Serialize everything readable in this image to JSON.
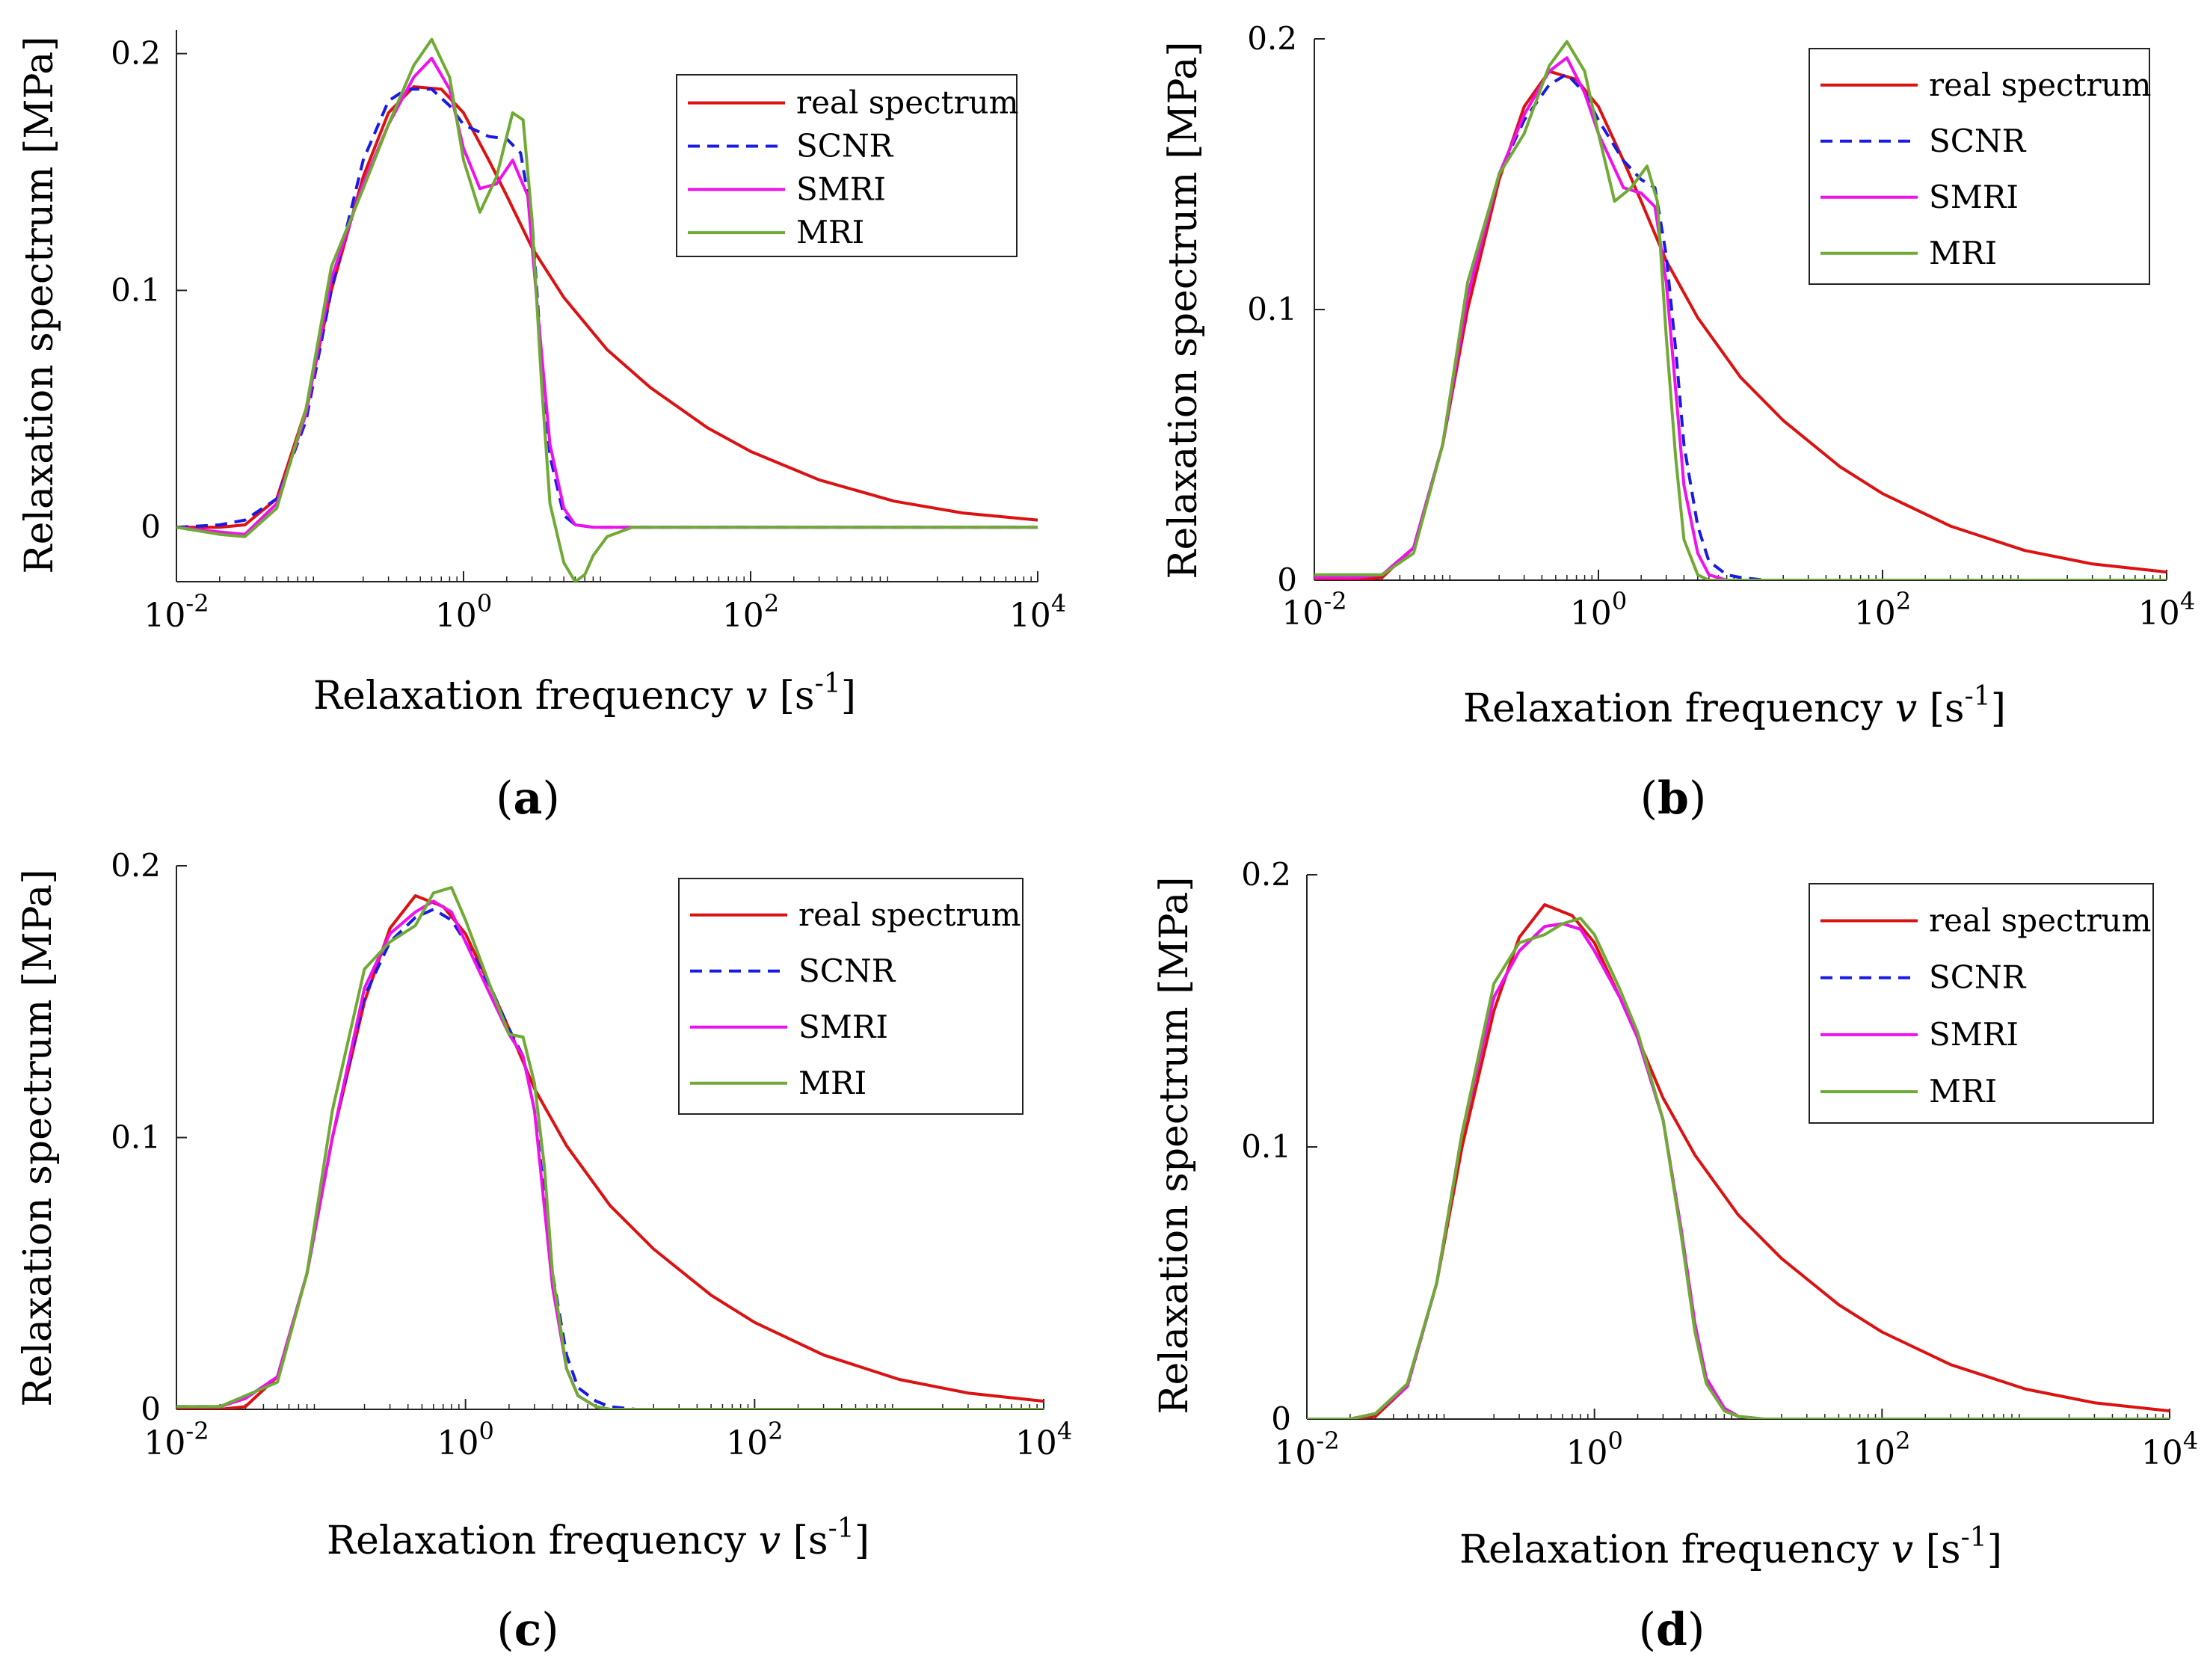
{
  "figure": {
    "legend_entries": [
      "real spectrum",
      "SCNR",
      "SMRI",
      "MRI"
    ],
    "series_colors": {
      "real spectrum": "#dd1111",
      "SCNR": "#1a1ae6",
      "SMRI": "#ee11ee",
      "MRI": "#6faa35"
    }
  },
  "chart_data": [
    {
      "panel_label": "(a)",
      "type": "line",
      "xlabel": "Relaxation frequency v  [s⁻¹]",
      "ylabel": "Relaxation spectrum  [MPa]",
      "xscale": "log",
      "xlim": [
        0.01,
        10000
      ],
      "ylim": [
        -0.023,
        0.21
      ],
      "xticks": [
        0.01,
        1,
        100,
        10000
      ],
      "xtick_labels": [
        "10-2",
        "100",
        "102",
        "104"
      ],
      "yticks": [
        0,
        0.1,
        0.2
      ],
      "ytick_labels": [
        "0",
        "0.1",
        "0.2"
      ],
      "legend_position": "top-right",
      "series": [
        {
          "name": "real spectrum",
          "x": [
            0.01,
            0.02,
            0.03,
            0.05,
            0.08,
            0.12,
            0.2,
            0.3,
            0.45,
            0.7,
            1,
            1.5,
            2,
            3,
            5,
            10,
            20,
            50,
            100,
            300,
            1000,
            3000,
            10000
          ],
          "y": [
            0,
            0,
            0.001,
            0.012,
            0.05,
            0.1,
            0.148,
            0.175,
            0.186,
            0.185,
            0.175,
            0.155,
            0.14,
            0.118,
            0.097,
            0.075,
            0.059,
            0.042,
            0.032,
            0.02,
            0.011,
            0.006,
            0.003
          ]
        },
        {
          "name": "SCNR",
          "x": [
            0.01,
            0.02,
            0.03,
            0.05,
            0.08,
            0.12,
            0.2,
            0.3,
            0.4,
            0.6,
            0.8,
            1,
            1.5,
            2,
            2.5,
            3,
            3.5,
            4,
            5,
            6,
            8,
            10,
            20,
            100,
            10000
          ],
          "y": [
            0,
            0.001,
            0.003,
            0.012,
            0.045,
            0.1,
            0.155,
            0.18,
            0.185,
            0.185,
            0.178,
            0.17,
            0.165,
            0.164,
            0.158,
            0.13,
            0.07,
            0.03,
            0.005,
            0.001,
            0,
            0,
            0,
            0,
            0
          ]
        },
        {
          "name": "SMRI",
          "x": [
            0.01,
            0.02,
            0.03,
            0.05,
            0.08,
            0.12,
            0.2,
            0.3,
            0.45,
            0.6,
            0.8,
            1,
            1.3,
            1.7,
            2.2,
            2.8,
            3.3,
            4,
            5,
            6,
            8,
            10,
            100,
            10000
          ],
          "y": [
            0,
            -0.002,
            -0.003,
            0.01,
            0.048,
            0.105,
            0.145,
            0.17,
            0.19,
            0.198,
            0.185,
            0.16,
            0.143,
            0.145,
            0.155,
            0.14,
            0.09,
            0.035,
            0.008,
            0.001,
            0,
            0,
            0,
            0
          ]
        },
        {
          "name": "MRI",
          "x": [
            0.01,
            0.02,
            0.03,
            0.05,
            0.08,
            0.12,
            0.2,
            0.3,
            0.45,
            0.6,
            0.8,
            1,
            1.3,
            1.7,
            2.2,
            2.6,
            3,
            3.5,
            4,
            5,
            6,
            7,
            8,
            10,
            15,
            100,
            10000
          ],
          "y": [
            0,
            -0.003,
            -0.004,
            0.008,
            0.05,
            0.11,
            0.143,
            0.17,
            0.195,
            0.206,
            0.19,
            0.155,
            0.133,
            0.148,
            0.175,
            0.172,
            0.13,
            0.06,
            0.01,
            -0.015,
            -0.023,
            -0.02,
            -0.012,
            -0.004,
            0,
            0,
            0
          ]
        }
      ]
    },
    {
      "panel_label": "(b)",
      "type": "line",
      "xlabel": "Relaxation frequency v  [s⁻¹]",
      "ylabel": "Relaxation spectrum  [MPa]",
      "xscale": "log",
      "xlim": [
        0.01,
        10000
      ],
      "ylim": [
        0,
        0.2
      ],
      "xticks": [
        0.01,
        1,
        100,
        10000
      ],
      "xtick_labels": [
        "10-2",
        "100",
        "102",
        "104"
      ],
      "yticks": [
        0,
        0.1,
        0.2
      ],
      "ytick_labels": [
        "0",
        "0.1",
        "0.2"
      ],
      "legend_position": "top-right",
      "series": [
        {
          "name": "real spectrum",
          "x": [
            0.01,
            0.02,
            0.03,
            0.05,
            0.08,
            0.12,
            0.2,
            0.3,
            0.45,
            0.7,
            1,
            1.5,
            2,
            3,
            5,
            10,
            20,
            50,
            100,
            300,
            1000,
            3000,
            10000
          ],
          "y": [
            0,
            0,
            0.001,
            0.012,
            0.05,
            0.1,
            0.148,
            0.175,
            0.188,
            0.185,
            0.175,
            0.155,
            0.14,
            0.118,
            0.097,
            0.075,
            0.059,
            0.042,
            0.032,
            0.02,
            0.011,
            0.006,
            0.003
          ]
        },
        {
          "name": "SCNR",
          "x": [
            0.01,
            0.02,
            0.03,
            0.05,
            0.08,
            0.12,
            0.2,
            0.3,
            0.45,
            0.6,
            0.8,
            1,
            1.5,
            2,
            2.5,
            3,
            3.5,
            4,
            5,
            6,
            8,
            10,
            15,
            100,
            10000
          ],
          "y": [
            0.001,
            0.001,
            0.002,
            0.012,
            0.05,
            0.105,
            0.15,
            0.17,
            0.183,
            0.187,
            0.18,
            0.17,
            0.155,
            0.148,
            0.145,
            0.12,
            0.085,
            0.05,
            0.02,
            0.007,
            0.002,
            0.001,
            0,
            0,
            0
          ]
        },
        {
          "name": "SMRI",
          "x": [
            0.01,
            0.02,
            0.03,
            0.05,
            0.08,
            0.12,
            0.2,
            0.3,
            0.45,
            0.6,
            0.8,
            1,
            1.5,
            2,
            2.5,
            3,
            3.5,
            4,
            5,
            6,
            8,
            10,
            100,
            10000
          ],
          "y": [
            0.001,
            0.001,
            0.002,
            0.012,
            0.05,
            0.105,
            0.15,
            0.172,
            0.188,
            0.193,
            0.18,
            0.165,
            0.145,
            0.143,
            0.138,
            0.11,
            0.07,
            0.035,
            0.01,
            0.002,
            0,
            0,
            0,
            0
          ]
        },
        {
          "name": "MRI",
          "x": [
            0.01,
            0.02,
            0.03,
            0.05,
            0.08,
            0.12,
            0.2,
            0.3,
            0.45,
            0.6,
            0.8,
            1,
            1.3,
            1.7,
            2.2,
            2.6,
            3,
            3.5,
            4,
            5,
            6,
            8,
            10,
            100,
            10000
          ],
          "y": [
            0.002,
            0.002,
            0.002,
            0.01,
            0.05,
            0.11,
            0.15,
            0.165,
            0.19,
            0.199,
            0.188,
            0.165,
            0.14,
            0.145,
            0.153,
            0.14,
            0.09,
            0.045,
            0.015,
            0.002,
            0,
            0,
            0,
            0,
            0
          ]
        }
      ]
    },
    {
      "panel_label": "(c)",
      "type": "line",
      "xlabel": "Relaxation frequency v  [s⁻¹]",
      "ylabel": "Relaxation spectrum  [MPa]",
      "xscale": "log",
      "xlim": [
        0.01,
        10000
      ],
      "ylim": [
        0,
        0.2
      ],
      "xticks": [
        0.01,
        1,
        100,
        10000
      ],
      "xtick_labels": [
        "10-2",
        "100",
        "102",
        "104"
      ],
      "yticks": [
        0,
        0.1,
        0.2
      ],
      "ytick_labels": [
        "0",
        "0.1",
        "0.2"
      ],
      "legend_position": "top-right",
      "series": [
        {
          "name": "real spectrum",
          "x": [
            0.01,
            0.02,
            0.03,
            0.05,
            0.08,
            0.12,
            0.2,
            0.3,
            0.45,
            0.7,
            1,
            1.5,
            2,
            3,
            5,
            10,
            20,
            50,
            100,
            300,
            1000,
            3000,
            10000
          ],
          "y": [
            0,
            0,
            0.001,
            0.012,
            0.05,
            0.1,
            0.15,
            0.177,
            0.189,
            0.185,
            0.175,
            0.155,
            0.14,
            0.118,
            0.097,
            0.075,
            0.059,
            0.042,
            0.032,
            0.02,
            0.011,
            0.006,
            0.003
          ]
        },
        {
          "name": "SCNR",
          "x": [
            0.01,
            0.02,
            0.03,
            0.05,
            0.08,
            0.12,
            0.2,
            0.3,
            0.45,
            0.6,
            0.8,
            1,
            1.5,
            2,
            2.5,
            3,
            3.5,
            4,
            5,
            6,
            8,
            10,
            15,
            100,
            10000
          ],
          "y": [
            0.001,
            0.001,
            0.004,
            0.012,
            0.05,
            0.1,
            0.152,
            0.172,
            0.181,
            0.184,
            0.18,
            0.172,
            0.155,
            0.14,
            0.13,
            0.11,
            0.08,
            0.05,
            0.02,
            0.008,
            0.003,
            0.001,
            0,
            0,
            0
          ]
        },
        {
          "name": "SMRI",
          "x": [
            0.01,
            0.02,
            0.03,
            0.05,
            0.08,
            0.12,
            0.2,
            0.3,
            0.45,
            0.6,
            0.8,
            1,
            1.5,
            2,
            2.5,
            3,
            3.5,
            4,
            5,
            6,
            8,
            10,
            100,
            10000
          ],
          "y": [
            0.001,
            0.001,
            0.004,
            0.012,
            0.05,
            0.1,
            0.155,
            0.175,
            0.183,
            0.187,
            0.183,
            0.172,
            0.152,
            0.138,
            0.13,
            0.11,
            0.075,
            0.045,
            0.015,
            0.005,
            0.001,
            0,
            0,
            0
          ]
        },
        {
          "name": "MRI",
          "x": [
            0.01,
            0.02,
            0.03,
            0.05,
            0.08,
            0.12,
            0.2,
            0.3,
            0.45,
            0.6,
            0.8,
            1,
            1.5,
            2,
            2.5,
            3,
            3.5,
            4,
            5,
            6,
            8,
            10,
            100,
            10000
          ],
          "y": [
            0.001,
            0.001,
            0.005,
            0.01,
            0.05,
            0.11,
            0.162,
            0.172,
            0.178,
            0.19,
            0.192,
            0.18,
            0.155,
            0.138,
            0.137,
            0.12,
            0.09,
            0.05,
            0.015,
            0.005,
            0.001,
            0,
            0,
            0
          ]
        }
      ]
    },
    {
      "panel_label": "(d)",
      "type": "line",
      "xlabel": "Relaxation frequency v  [s⁻¹]",
      "ylabel": "Relaxation spectrum  [MPa]",
      "xscale": "log",
      "xlim": [
        0.01,
        10000
      ],
      "ylim": [
        0,
        0.2
      ],
      "xticks": [
        0.01,
        1,
        100,
        10000
      ],
      "xtick_labels": [
        "10-2",
        "100",
        "102",
        "104"
      ],
      "yticks": [
        0,
        0.1,
        0.2
      ],
      "ytick_labels": [
        "0",
        "0.1",
        "0.2"
      ],
      "legend_position": "top-right",
      "series": [
        {
          "name": "real spectrum",
          "x": [
            0.01,
            0.02,
            0.03,
            0.05,
            0.08,
            0.12,
            0.2,
            0.3,
            0.45,
            0.7,
            1,
            1.5,
            2,
            3,
            5,
            10,
            20,
            50,
            100,
            300,
            1000,
            3000,
            10000
          ],
          "y": [
            0,
            0,
            0.001,
            0.012,
            0.05,
            0.1,
            0.15,
            0.177,
            0.189,
            0.185,
            0.175,
            0.155,
            0.14,
            0.118,
            0.097,
            0.075,
            0.059,
            0.042,
            0.032,
            0.02,
            0.011,
            0.006,
            0.003
          ]
        },
        {
          "name": "SCNR",
          "x": [
            0.01,
            0.02,
            0.03,
            0.05,
            0.08,
            0.12,
            0.2,
            0.3,
            0.45,
            0.6,
            0.8,
            1,
            1.5,
            2,
            3,
            4,
            5,
            6,
            8,
            10,
            15,
            100,
            10000
          ],
          "y": [
            0,
            0,
            0.002,
            0.012,
            0.05,
            0.105,
            0.155,
            0.172,
            0.181,
            0.182,
            0.18,
            0.172,
            0.155,
            0.14,
            0.11,
            0.07,
            0.035,
            0.015,
            0.004,
            0.001,
            0,
            0,
            0
          ]
        },
        {
          "name": "SMRI",
          "x": [
            0.01,
            0.02,
            0.03,
            0.05,
            0.08,
            0.12,
            0.2,
            0.3,
            0.45,
            0.6,
            0.8,
            1,
            1.5,
            2,
            3,
            4,
            5,
            6,
            8,
            10,
            15,
            100,
            10000
          ],
          "y": [
            0,
            0,
            0.002,
            0.012,
            0.05,
            0.105,
            0.155,
            0.172,
            0.181,
            0.182,
            0.18,
            0.172,
            0.155,
            0.14,
            0.11,
            0.07,
            0.035,
            0.015,
            0.004,
            0.001,
            0,
            0,
            0
          ]
        },
        {
          "name": "MRI",
          "x": [
            0.01,
            0.02,
            0.03,
            0.05,
            0.08,
            0.12,
            0.2,
            0.3,
            0.45,
            0.6,
            0.8,
            1,
            1.5,
            2,
            3,
            4,
            5,
            6,
            8,
            10,
            15,
            100,
            10000
          ],
          "y": [
            0,
            0,
            0.002,
            0.013,
            0.05,
            0.105,
            0.16,
            0.175,
            0.178,
            0.182,
            0.184,
            0.178,
            0.158,
            0.142,
            0.11,
            0.068,
            0.032,
            0.013,
            0.003,
            0.001,
            0,
            0,
            0
          ]
        }
      ]
    }
  ]
}
